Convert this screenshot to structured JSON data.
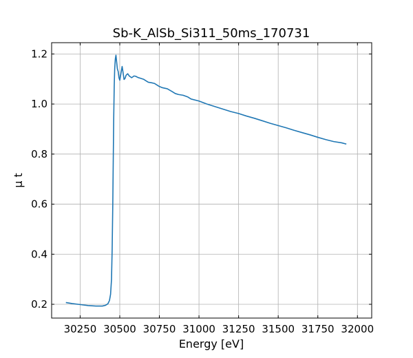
{
  "chart_data": {
    "type": "line",
    "title": "Sb-K_AlSb_Si311_50ms_170731",
    "xlabel": "Energy [eV]",
    "ylabel": "μ t",
    "xlim": [
      30070,
      32090
    ],
    "ylim": [
      0.145,
      1.245
    ],
    "xticks": [
      30250,
      30500,
      30750,
      31000,
      31250,
      31500,
      31750,
      32000
    ],
    "yticks": [
      0.2,
      0.4,
      0.6,
      0.8,
      1.0,
      1.2
    ],
    "xtick_labels": [
      "30250",
      "30500",
      "30750",
      "31000",
      "31250",
      "31500",
      "31750",
      "32000"
    ],
    "ytick_labels": [
      "0.2",
      "0.4",
      "0.6",
      "0.8",
      "1.0",
      "1.2"
    ],
    "grid": true,
    "series": [
      {
        "color": "#1f77b4",
        "x": [
          30160,
          30200,
          30250,
          30300,
          30350,
          30390,
          30410,
          30425,
          30435,
          30442,
          30448,
          30452,
          30456,
          30459,
          30462,
          30465,
          30468,
          30472,
          30476,
          30480,
          30485,
          30490,
          30495,
          30500,
          30507,
          30515,
          30521,
          30527,
          30533,
          30540,
          30550,
          30560,
          30575,
          30590,
          30600,
          30615,
          30630,
          30650,
          30665,
          30680,
          30700,
          30720,
          30750,
          30770,
          30800,
          30830,
          30850,
          30870,
          30900,
          30930,
          30950,
          31000,
          31050,
          31100,
          31150,
          31200,
          31250,
          31300,
          31350,
          31400,
          31450,
          31500,
          31550,
          31600,
          31650,
          31700,
          31750,
          31800,
          31850,
          31900,
          31930
        ],
        "y": [
          0.207,
          0.203,
          0.199,
          0.195,
          0.193,
          0.193,
          0.196,
          0.202,
          0.215,
          0.24,
          0.3,
          0.42,
          0.6,
          0.78,
          0.95,
          1.07,
          1.14,
          1.18,
          1.195,
          1.17,
          1.14,
          1.13,
          1.105,
          1.095,
          1.12,
          1.15,
          1.125,
          1.098,
          1.102,
          1.115,
          1.121,
          1.112,
          1.105,
          1.112,
          1.111,
          1.106,
          1.103,
          1.099,
          1.093,
          1.087,
          1.085,
          1.082,
          1.07,
          1.065,
          1.061,
          1.05,
          1.042,
          1.038,
          1.035,
          1.028,
          1.02,
          1.012,
          1.0,
          0.99,
          0.98,
          0.97,
          0.962,
          0.952,
          0.943,
          0.933,
          0.923,
          0.914,
          0.905,
          0.895,
          0.886,
          0.877,
          0.867,
          0.858,
          0.85,
          0.845,
          0.84
        ]
      }
    ]
  }
}
